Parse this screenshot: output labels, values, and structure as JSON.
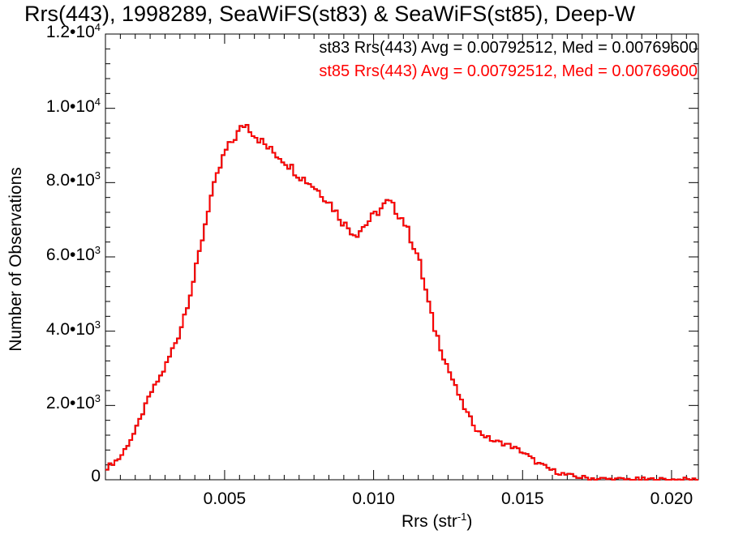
{
  "chart_data": {
    "type": "histogram",
    "title": "Rrs(443), 1998289, SeaWiFS(st83) & SeaWiFS(st85), Deep-W",
    "xlabel": "Rrs (str",
    "xlabel_sup": "-1",
    "xlabel_end": ")",
    "ylabel": "Number of Observations",
    "xlim": [
      0.001,
      0.0209
    ],
    "ylim": [
      0,
      12000
    ],
    "x_ticks": [
      {
        "value": 0.005,
        "label": "0.005"
      },
      {
        "value": 0.01,
        "label": "0.010"
      },
      {
        "value": 0.015,
        "label": "0.015"
      },
      {
        "value": 0.02,
        "label": "0.020"
      }
    ],
    "y_ticks": [
      {
        "value": 0,
        "mant": "0",
        "exp": ""
      },
      {
        "value": 2000,
        "mant": "2.0•10",
        "exp": "3"
      },
      {
        "value": 4000,
        "mant": "4.0•10",
        "exp": "3"
      },
      {
        "value": 6000,
        "mant": "6.0•10",
        "exp": "3"
      },
      {
        "value": 8000,
        "mant": "8.0•10",
        "exp": "3"
      },
      {
        "value": 10000,
        "mant": "1.0•10",
        "exp": "4"
      },
      {
        "value": 12000,
        "mant": "1.2•10",
        "exp": "4"
      }
    ],
    "legend_position": "top-right",
    "series": [
      {
        "name": "st83 Rrs(443) Avg = 0.00792512, Med = 0.00769600",
        "color": "#000000"
      },
      {
        "name": "st85 Rrs(443) Avg = 0.00792512, Med = 0.00769600",
        "color": "#ff0000"
      }
    ],
    "histogram_points": [
      [
        0.001,
        300
      ],
      [
        0.0015,
        600
      ],
      [
        0.002,
        1300
      ],
      [
        0.0025,
        2300
      ],
      [
        0.003,
        3000
      ],
      [
        0.0035,
        4000
      ],
      [
        0.004,
        5500
      ],
      [
        0.0045,
        7500
      ],
      [
        0.005,
        8800
      ],
      [
        0.0055,
        9400
      ],
      [
        0.0057,
        9600
      ],
      [
        0.006,
        9300
      ],
      [
        0.0065,
        8900
      ],
      [
        0.007,
        8600
      ],
      [
        0.0075,
        8200
      ],
      [
        0.008,
        7900
      ],
      [
        0.0085,
        7500
      ],
      [
        0.009,
        6900
      ],
      [
        0.0094,
        6600
      ],
      [
        0.01,
        7100
      ],
      [
        0.0105,
        7500
      ],
      [
        0.011,
        7000
      ],
      [
        0.0115,
        6000
      ],
      [
        0.012,
        4200
      ],
      [
        0.0125,
        3000
      ],
      [
        0.013,
        2000
      ],
      [
        0.0135,
        1300
      ],
      [
        0.014,
        1050
      ],
      [
        0.0145,
        950
      ],
      [
        0.015,
        750
      ],
      [
        0.0155,
        450
      ],
      [
        0.016,
        250
      ],
      [
        0.0165,
        120
      ],
      [
        0.017,
        60
      ],
      [
        0.0175,
        30
      ],
      [
        0.018,
        10
      ],
      [
        0.019,
        5
      ],
      [
        0.02,
        0
      ],
      [
        0.0209,
        0
      ]
    ]
  }
}
